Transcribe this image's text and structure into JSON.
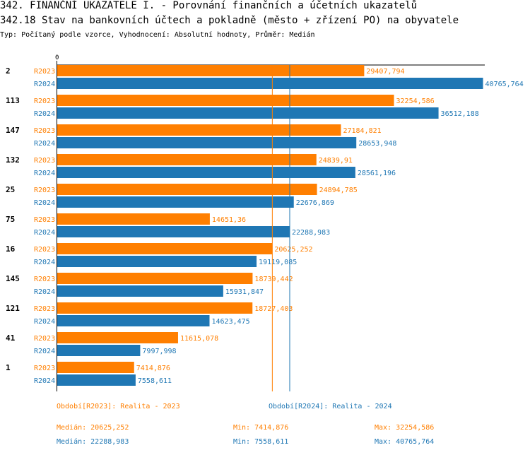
{
  "header": {
    "title": "342. FINANČNÍ UKAZATELE I. - Porovnání finančních a účetních ukazatelů",
    "subtitle": "342.18 Stav na bankovních účtech a pokladně (město + zřízení PO) na obyvatele",
    "type_line": "Typ: Počítaný podle vzorce, Vyhodnocení: Absolutní hodnoty, Průměr: Medián"
  },
  "colors": {
    "r2023": "#ff7f00",
    "r2024": "#1f77b4"
  },
  "chart_data": {
    "type": "bar",
    "orientation": "horizontal",
    "axis_zero_label": "0",
    "xlim": [
      0,
      41000
    ],
    "categories": [
      "2",
      "113",
      "147",
      "132",
      "25",
      "75",
      "16",
      "145",
      "121",
      "41",
      "1"
    ],
    "series": [
      {
        "name": "R2023",
        "values": [
          29407.794,
          32254.586,
          27184.821,
          24839.91,
          24894.785,
          14651.36,
          20625.252,
          18739.442,
          18727.403,
          11615.078,
          7414.876
        ],
        "labels": [
          "29407,794",
          "32254,586",
          "27184,821",
          "24839,91",
          "24894,785",
          "14651,36",
          "20625,252",
          "18739,442",
          "18727,403",
          "11615,078",
          "7414,876"
        ]
      },
      {
        "name": "R2024",
        "values": [
          40765.764,
          36512.188,
          28653.948,
          28561.196,
          22676.869,
          22288.983,
          19119.085,
          15931.847,
          14623.475,
          7997.998,
          7558.611
        ],
        "labels": [
          "40765,764",
          "36512,188",
          "28653,948",
          "28561,196",
          "22676,869",
          "22288,983",
          "19119,085",
          "15931,847",
          "14623,475",
          "7997,998",
          "7558,611"
        ]
      }
    ],
    "medians": {
      "R2023": 20625.252,
      "R2024": 22288.983
    }
  },
  "legend": {
    "r2023": {
      "period": "Období[R2023]: Realita - 2023",
      "median": "Medián: 20625,252",
      "min": "Min: 7414,876",
      "max": "Max: 32254,586"
    },
    "r2024": {
      "period": "Období[R2024]: Realita - 2024",
      "median": "Medián: 22288,983",
      "min": "Min: 7558,611",
      "max": "Max: 40765,764"
    }
  }
}
